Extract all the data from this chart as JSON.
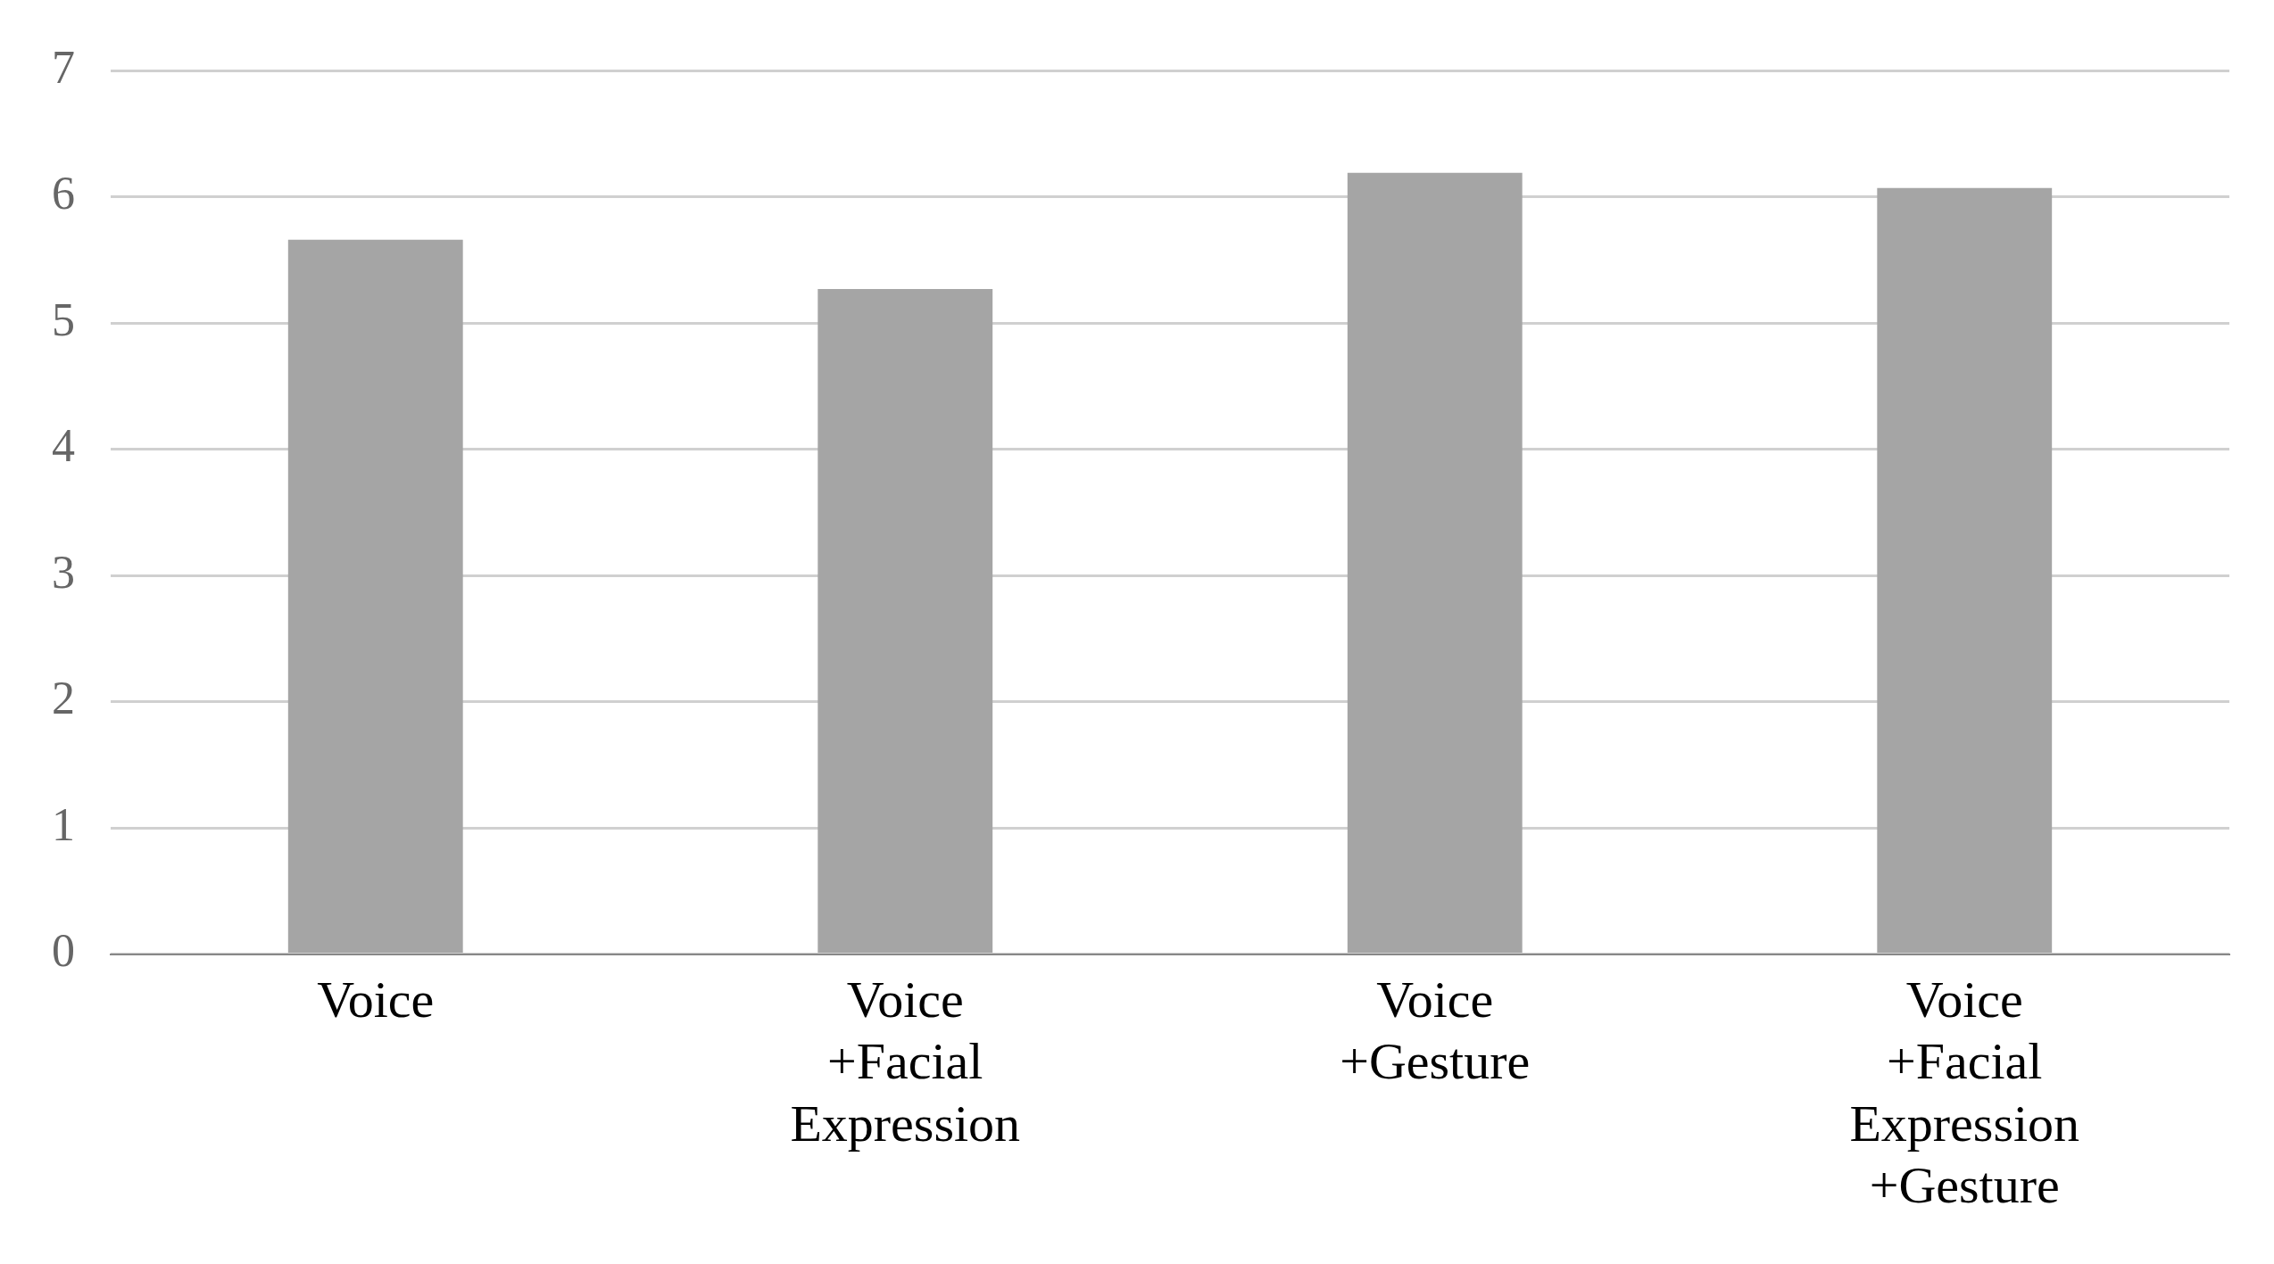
{
  "chart_data": {
    "type": "bar",
    "categories": [
      "Voice",
      "Voice\n+Facial\nExpression",
      "Voice\n+Gesture",
      "Voice\n+Facial\nExpression\n+Gesture"
    ],
    "values": [
      5.66,
      5.27,
      6.19,
      6.07
    ],
    "color": "#a5a5a5",
    "ylim": [
      0,
      7
    ],
    "yticks": [
      0,
      1,
      2,
      3,
      4,
      5,
      6,
      7
    ],
    "grid": "y",
    "legend": false
  }
}
